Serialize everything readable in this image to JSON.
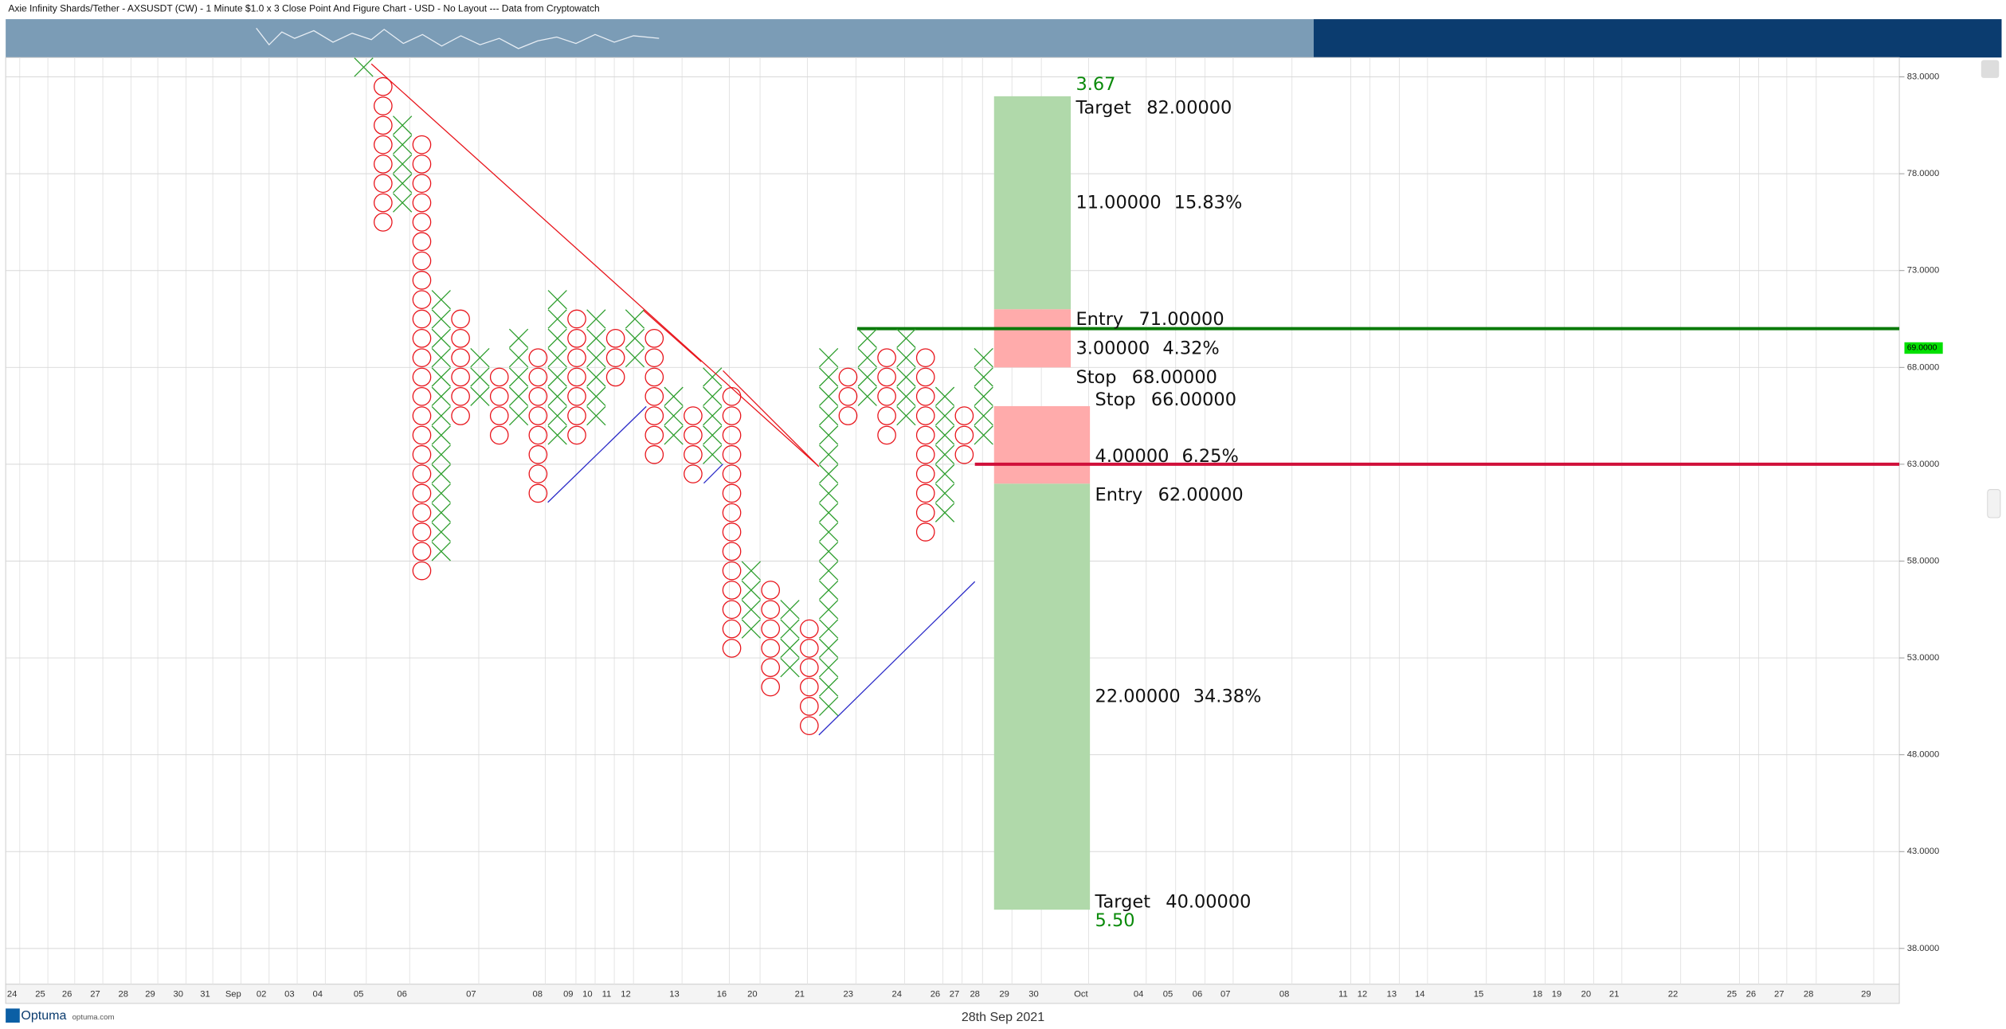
{
  "chart_data": {
    "type": "pnf",
    "title": "Axie Infinity Shards/Tether - AXSUSDT (CW) - 1 Minute $1.0 x 3 Close Point And Figure Chart - USD - No Layout --- Data from Cryptowatch",
    "footer_date": "28th Sep 2021",
    "brand": "Optuma",
    "brand_site": "optuma.com",
    "ylim": [
      36.15,
      84
    ],
    "yticks": [
      {
        "value": 83,
        "label": "83.0000"
      },
      {
        "value": 78,
        "label": "78.0000"
      },
      {
        "value": 73,
        "label": "73.0000"
      },
      {
        "value": 68,
        "label": "68.0000"
      },
      {
        "value": 63,
        "label": "63.0000"
      },
      {
        "value": 58,
        "label": "58.0000"
      },
      {
        "value": 53,
        "label": "53.0000"
      },
      {
        "value": 48,
        "label": "48.0000"
      },
      {
        "value": 43,
        "label": "43.0000"
      },
      {
        "value": 38,
        "label": "38.0000"
      }
    ],
    "x_labels": [
      "24",
      "25",
      "26",
      "27",
      "28",
      "29",
      "30",
      "31",
      "Sep",
      "02",
      "03",
      "04",
      "05",
      "06",
      "07",
      "08",
      "09",
      "10",
      "11",
      "12",
      "13",
      "16",
      "20",
      "21",
      "23",
      "24",
      "26",
      "27",
      "28",
      "29",
      "30",
      "Oct",
      "04",
      "05",
      "06",
      "07",
      "08",
      "11",
      "12",
      "13",
      "14",
      "15",
      "18",
      "19",
      "20",
      "21",
      "22",
      "25",
      "26",
      "27",
      "28",
      "29"
    ],
    "grid": true,
    "x_color": "#2e9e2e",
    "o_color": "#e8141b",
    "columns": [
      {
        "type": "X",
        "high": 83.5,
        "low": 83.5
      },
      {
        "type": "O",
        "high": 82.5,
        "low": 75.5
      },
      {
        "type": "X",
        "high": 80.5,
        "low": 76.5
      },
      {
        "type": "O",
        "high": 79.5,
        "low": 57.5
      },
      {
        "type": "X",
        "high": 71.5,
        "low": 58.5
      },
      {
        "type": "O",
        "high": 70.5,
        "low": 65.5
      },
      {
        "type": "X",
        "high": 68.5,
        "low": 66.5
      },
      {
        "type": "O",
        "high": 67.5,
        "low": 64.5
      },
      {
        "type": "X",
        "high": 69.5,
        "low": 65.5
      },
      {
        "type": "O",
        "high": 68.5,
        "low": 61.5
      },
      {
        "type": "X",
        "high": 71.5,
        "low": 64.5
      },
      {
        "type": "O",
        "high": 70.5,
        "low": 64.5
      },
      {
        "type": "X",
        "high": 70.5,
        "low": 65.5
      },
      {
        "type": "O",
        "high": 69.5,
        "low": 67.5
      },
      {
        "type": "X",
        "high": 70.5,
        "low": 68.5
      },
      {
        "type": "O",
        "high": 69.5,
        "low": 63.5
      },
      {
        "type": "X",
        "high": 66.5,
        "low": 64.5
      },
      {
        "type": "O",
        "high": 65.5,
        "low": 62.5
      },
      {
        "type": "X",
        "high": 67.5,
        "low": 63.5
      },
      {
        "type": "O",
        "high": 66.5,
        "low": 53.5
      },
      {
        "type": "X",
        "high": 57.5,
        "low": 54.5
      },
      {
        "type": "O",
        "high": 56.5,
        "low": 51.5
      },
      {
        "type": "X",
        "high": 55.5,
        "low": 52.5
      },
      {
        "type": "O",
        "high": 54.5,
        "low": 49.5
      },
      {
        "type": "X",
        "high": 68.5,
        "low": 50.5
      },
      {
        "type": "O",
        "high": 67.5,
        "low": 65.5
      },
      {
        "type": "X",
        "high": 69.5,
        "low": 66.5
      },
      {
        "type": "O",
        "high": 68.5,
        "low": 64.5
      },
      {
        "type": "X",
        "high": 69.5,
        "low": 65.5
      },
      {
        "type": "O",
        "high": 68.5,
        "low": 59.5
      },
      {
        "type": "X",
        "high": 66.5,
        "low": 60.5
      },
      {
        "type": "O",
        "high": 65.5,
        "low": 63.5
      },
      {
        "type": "X",
        "high": 68.5,
        "low": 64.5
      }
    ],
    "levels": [
      {
        "value": 70,
        "color": "#0a7a0a"
      },
      {
        "value": 63,
        "color": "#d0103a"
      }
    ],
    "last_price": {
      "value": 69,
      "label": "69.0000",
      "color": "#00e000"
    },
    "trades": [
      {
        "side": "long",
        "ratio": "3.67",
        "target": 82,
        "target_word": "Target",
        "target_label": "82.00000",
        "entry": 71,
        "entry_word": "Entry",
        "entry_label": "71.00000",
        "stop": 68,
        "stop_word": "Stop",
        "stop_label": "68.00000",
        "reward": "11.00000",
        "reward_pct": "15.83%",
        "risk": "3.00000",
        "risk_pct": "4.32%",
        "reward_color": "#b0d9aa",
        "risk_color": "#ffabab"
      },
      {
        "side": "short",
        "ratio": "5.50",
        "target": 40,
        "target_word": "Target",
        "target_label": "40.00000",
        "entry": 62,
        "entry_word": "Entry",
        "entry_label": "62.00000",
        "stop": 66,
        "stop_word": "Stop",
        "stop_label": "66.00000",
        "reward": "22.00000",
        "reward_pct": "34.38%",
        "risk": "4.00000",
        "risk_pct": "6.25%",
        "reward_color": "#b0d9aa",
        "risk_color": "#ffabab"
      }
    ]
  }
}
